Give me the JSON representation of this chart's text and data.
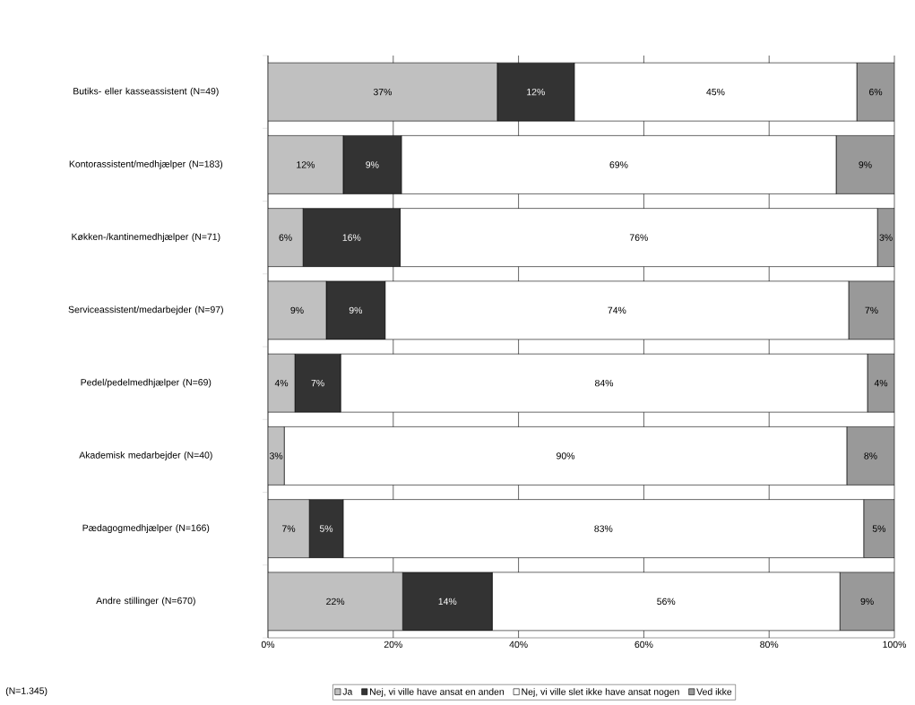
{
  "chart_data": {
    "type": "bar",
    "orientation": "horizontal",
    "stacked": true,
    "categories": [
      "Butiks- eller kasseassistent (N=49)",
      "Kontorassistent/medhjælper (N=183)",
      "Køkken-/kantinemedhjælper (N=71)",
      "Serviceassistent/medarbejder (N=97)",
      "Pedel/pedelmedhjælper (N=69)",
      "Akademisk medarbejder (N=40)",
      "Pædagogmedhjælper (N=166)",
      "Andre stillinger (N=670)"
    ],
    "series": [
      {
        "name": "Ja",
        "color": "#c0c0c0",
        "values": [
          36.6,
          12.0,
          5.6,
          9.3,
          4.3,
          2.6,
          6.6,
          21.5
        ],
        "value_labels": [
          "37%",
          "12%",
          "6%",
          "9%",
          "4%",
          "3%",
          "7%",
          "22%"
        ]
      },
      {
        "name": "Nej, vi ville have ansat en anden",
        "color": "#333333",
        "values": [
          12.3,
          9.3,
          15.5,
          9.4,
          7.3,
          0,
          5.4,
          14.3
        ],
        "value_labels": [
          "12%",
          "9%",
          "16%",
          "9%",
          "7%",
          null,
          "5%",
          "14%"
        ]
      },
      {
        "name": "Nej, vi ville slet ikke have ansat nogen",
        "color": "#ffffff",
        "values": [
          45.1,
          69.4,
          76.2,
          74.0,
          84.1,
          89.8,
          83.1,
          55.5
        ],
        "value_labels": [
          "45%",
          "69%",
          "76%",
          "74%",
          "84%",
          "90%",
          "83%",
          "56%"
        ]
      },
      {
        "name": "Ved ikke",
        "color": "#999999",
        "values": [
          6.0,
          9.3,
          2.7,
          7.3,
          4.3,
          7.6,
          4.9,
          8.7
        ],
        "value_labels": [
          "6%",
          "9%",
          "3%",
          "7%",
          "4%",
          "8%",
          "5%",
          "9%"
        ]
      }
    ],
    "xlim": [
      0,
      100
    ],
    "xticks": [
      {
        "value": 0,
        "label": "0%"
      },
      {
        "value": 20,
        "label": "20%"
      },
      {
        "value": 40,
        "label": "40%"
      },
      {
        "value": 60,
        "label": "60%"
      },
      {
        "value": 80,
        "label": "80%"
      },
      {
        "value": 100,
        "label": "100%"
      }
    ],
    "grid": "x",
    "legend": "bottom",
    "annotations": [
      "(N=1.345)"
    ]
  }
}
